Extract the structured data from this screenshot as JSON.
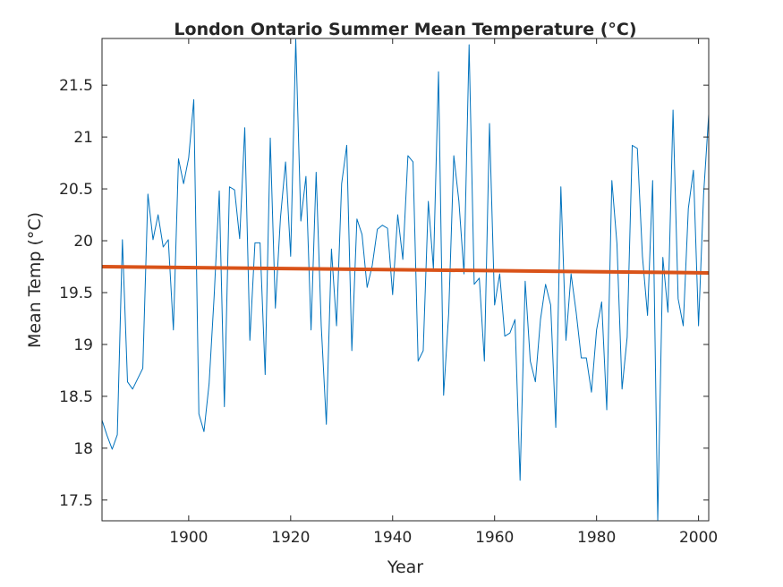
{
  "chart_data": {
    "type": "line",
    "title": "London Ontario Summer Mean Temperature (°C)",
    "xlabel": "Year",
    "ylabel": "Mean Temp (°C)",
    "xlim": [
      1883,
      2002
    ],
    "ylim": [
      17.3,
      21.95
    ],
    "x_ticks": [
      1900,
      1920,
      1940,
      1960,
      1980,
      2000
    ],
    "x_tick_labels": [
      "1900",
      "1920",
      "1940",
      "1960",
      "1980",
      "2000"
    ],
    "y_ticks": [
      17.5,
      18,
      18.5,
      19,
      19.5,
      20,
      20.5,
      21,
      21.5
    ],
    "y_tick_labels": [
      "17.5",
      "18",
      "18.5",
      "19",
      "19.5",
      "20",
      "20.5",
      "21",
      "21.5"
    ],
    "grid": false,
    "series": [
      {
        "x": [
          1883,
          1884,
          1885,
          1886,
          1887,
          1888,
          1889,
          1890,
          1891,
          1892,
          1893,
          1894,
          1895,
          1896,
          1897,
          1898,
          1899,
          1900,
          1901,
          1902,
          1903,
          1904,
          1905,
          1906,
          1907,
          1908,
          1909,
          1910,
          1911,
          1912,
          1913,
          1914,
          1915,
          1916,
          1917,
          1918,
          1919,
          1920,
          1921,
          1922,
          1923,
          1924,
          1925,
          1926,
          1927,
          1928,
          1929,
          1930,
          1931,
          1932,
          1933,
          1934,
          1935,
          1936,
          1937,
          1938,
          1939,
          1940,
          1941,
          1942,
          1943,
          1944,
          1945,
          1946,
          1947,
          1948,
          1949,
          1950,
          1951,
          1952,
          1953,
          1954,
          1955,
          1956,
          1957,
          1958,
          1959,
          1960,
          1961,
          1962,
          1963,
          1964,
          1965,
          1966,
          1967,
          1968,
          1969,
          1970,
          1971,
          1972,
          1973,
          1974,
          1975,
          1976,
          1977,
          1978,
          1979,
          1980,
          1981,
          1982,
          1983,
          1984,
          1985,
          1986,
          1987,
          1988,
          1989,
          1990,
          1991,
          1992,
          1993,
          1994,
          1995,
          1996,
          1997,
          1998,
          1999,
          2000,
          2001,
          2002
        ],
        "values": [
          18.27,
          18.12,
          17.99,
          18.13,
          20.01,
          18.64,
          18.57,
          18.67,
          18.77,
          20.45,
          20.01,
          20.25,
          19.94,
          20.01,
          19.14,
          20.79,
          20.55,
          20.8,
          21.36,
          18.33,
          18.16,
          18.62,
          19.47,
          20.48,
          18.4,
          20.52,
          20.49,
          20.02,
          21.09,
          19.04,
          19.98,
          19.98,
          18.71,
          20.99,
          19.35,
          20.22,
          20.76,
          19.85,
          21.94,
          20.19,
          20.62,
          19.14,
          20.66,
          19.18,
          18.23,
          19.92,
          19.18,
          20.55,
          20.92,
          18.94,
          20.21,
          20.06,
          19.55,
          19.76,
          20.11,
          20.15,
          20.12,
          19.48,
          20.25,
          19.82,
          20.82,
          20.76,
          18.84,
          18.94,
          20.38,
          19.73,
          21.63,
          18.51,
          19.3,
          20.82,
          20.38,
          19.68,
          21.89,
          19.58,
          19.64,
          18.84,
          21.13,
          19.38,
          19.68,
          19.08,
          19.11,
          19.24,
          17.69,
          19.61,
          18.84,
          18.64,
          19.24,
          19.58,
          19.38,
          18.2,
          20.52,
          19.04,
          19.68,
          19.31,
          18.87,
          18.87,
          18.54,
          19.14,
          19.41,
          18.37,
          20.58,
          19.97,
          18.57,
          19.07,
          20.92,
          20.89,
          19.85,
          19.28,
          20.58,
          17.3,
          19.84,
          19.31,
          21.26,
          19.44,
          19.18,
          20.31,
          20.68,
          19.18,
          20.45,
          21.22
        ],
        "color": "#0072BD"
      },
      {
        "x": [
          1883,
          2002
        ],
        "values": [
          19.75,
          19.69
        ],
        "color": "#D95319"
      }
    ]
  }
}
